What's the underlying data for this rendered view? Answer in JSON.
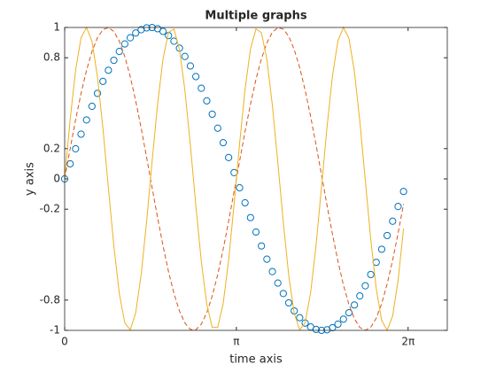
{
  "chart_data": {
    "type": "line",
    "title": "Multiple graphs",
    "x_label": "time axis",
    "y_label": "y axis",
    "x": [
      0,
      0.1,
      0.2,
      0.3,
      0.4,
      0.5,
      0.6,
      0.7,
      0.8,
      0.9,
      1,
      1.1,
      1.2,
      1.3,
      1.4,
      1.5,
      1.6,
      1.7,
      1.8,
      1.9,
      2,
      2.1,
      2.2,
      2.3,
      2.4,
      2.5,
      2.6,
      2.7,
      2.8,
      2.9,
      3,
      3.1,
      3.2,
      3.3,
      3.4,
      3.5,
      3.6,
      3.7,
      3.8,
      3.9,
      4,
      4.1,
      4.2,
      4.3,
      4.4,
      4.5,
      4.6,
      4.7,
      4.8,
      4.9,
      5,
      5.1,
      5.2,
      5.3,
      5.4,
      5.5,
      5.6,
      5.7,
      5.8,
      5.9,
      6,
      6.1,
      6.2
    ],
    "series": [
      {
        "color": "#0072BD",
        "style": "circle",
        "values": [
          0,
          0.0998,
          0.1987,
          0.2955,
          0.3894,
          0.4794,
          0.5646,
          0.6442,
          0.7174,
          0.7833,
          0.8415,
          0.8912,
          0.932,
          0.9636,
          0.9854,
          0.9975,
          0.9996,
          0.9917,
          0.9738,
          0.9463,
          0.9093,
          0.8632,
          0.8085,
          0.7457,
          0.6755,
          0.5985,
          0.5155,
          0.4274,
          0.335,
          0.2392,
          0.1411,
          0.0416,
          -0.0584,
          -0.1577,
          -0.2555,
          -0.3508,
          -0.4425,
          -0.5298,
          -0.6119,
          -0.6878,
          -0.7568,
          -0.8183,
          -0.8716,
          -0.9162,
          -0.9516,
          -0.9775,
          -0.9937,
          -0.9999,
          -0.9962,
          -0.9825,
          -0.9589,
          -0.9258,
          -0.8835,
          -0.8323,
          -0.7728,
          -0.7055,
          -0.6313,
          -0.5507,
          -0.4646,
          -0.3739,
          -0.2794,
          -0.1822,
          -0.0831
        ]
      },
      {
        "color": "#D95319",
        "style": "dashed",
        "values": [
          0,
          0.1987,
          0.3894,
          0.5646,
          0.7174,
          0.8415,
          0.932,
          0.9854,
          0.9996,
          0.9738,
          0.9093,
          0.8085,
          0.6755,
          0.5155,
          0.335,
          0.1411,
          -0.0584,
          -0.2555,
          -0.4425,
          -0.6119,
          -0.7568,
          -0.8716,
          -0.9516,
          -0.9937,
          -0.9962,
          -0.9589,
          -0.8835,
          -0.7728,
          -0.6313,
          -0.4646,
          -0.2794,
          -0.0831,
          0.1165,
          0.3115,
          0.4941,
          0.657,
          0.7937,
          0.8988,
          0.9681,
          0.9986,
          0.9895,
          0.9409,
          0.8547,
          0.7345,
          0.585,
          0.4122,
          0.2229,
          0.0248,
          -0.1743,
          -0.3665,
          -0.544,
          -0.7,
          -0.828,
          -0.9229,
          -0.981,
          -0.9998,
          -0.9794,
          -0.9194,
          -0.823,
          -0.6936,
          -0.5367,
          -0.3583,
          -0.1657
        ]
      },
      {
        "color": "#EDB120",
        "style": "solid",
        "values": [
          0,
          0.3894,
          0.7174,
          0.932,
          0.9996,
          0.9093,
          0.6755,
          0.335,
          -0.0584,
          -0.4425,
          -0.7568,
          -0.9516,
          -0.9962,
          -0.8835,
          -0.6313,
          -0.2794,
          0.1165,
          0.4941,
          0.7937,
          0.9681,
          0.9895,
          0.8547,
          0.585,
          0.2229,
          -0.1743,
          -0.544,
          -0.828,
          -0.981,
          -0.9794,
          -0.823,
          -0.5367,
          -0.1657,
          0.2315,
          0.592,
          0.8592,
          0.9905,
          0.9657,
          0.7882,
          0.4864,
          0.1078,
          -0.2879,
          -0.6382,
          -0.8876,
          -0.9969,
          -0.9489,
          -0.7511,
          -0.4345,
          -0.0496,
          0.3432,
          0.6819,
          0.913,
          0.9998,
          0.9288,
          0.7112,
          0.3813,
          -0.0089,
          -0.3976,
          -0.7235,
          -0.9352,
          -0.9992,
          -0.9055,
          -0.6689,
          -0.3267
        ]
      }
    ],
    "xlim": [
      0,
      7
    ],
    "ylim": [
      -1,
      1
    ],
    "xticks": [
      0,
      {
        "value": 3.14159,
        "label": "π"
      },
      {
        "value": 6.28319,
        "label": "2π"
      }
    ],
    "yticks": [
      -1,
      -0.8,
      -0.2,
      0,
      0.2,
      0.8,
      1
    ]
  }
}
